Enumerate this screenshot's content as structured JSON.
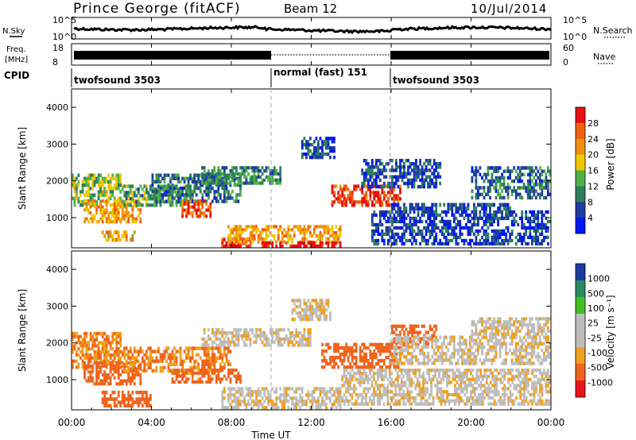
{
  "header": {
    "station": "Prince George (fitACF)",
    "beam": "Beam 12",
    "date": "10/Jul/2014"
  },
  "noise_panel": {
    "left_label": "N.Sky",
    "right_label": "N.Search",
    "left_ticks": [
      "10^5",
      "10^0"
    ],
    "right_ticks": [
      "10^5",
      "10^0"
    ]
  },
  "freq_panel": {
    "left_label_line1": "Freq.",
    "left_label_line2": "[MHz]",
    "right_label": "Nave",
    "left_ticks": [
      "18",
      "8"
    ],
    "right_ticks": [
      "60",
      "0"
    ]
  },
  "cpid_panel": {
    "label": "CPID",
    "segments": [
      {
        "label": "twofsound 3503",
        "start_hour": 0,
        "end_hour": 10
      },
      {
        "label": "normal (fast) 151",
        "start_hour": 10,
        "end_hour": 16
      },
      {
        "label": "twofsound 3503",
        "start_hour": 16,
        "end_hour": 24
      }
    ]
  },
  "time_axis": {
    "label": "Time UT",
    "ticks": [
      "00:00",
      "04:00",
      "08:00",
      "12:00",
      "16:00",
      "20:00",
      "00:00"
    ]
  },
  "colors": {
    "power_scale": [
      "#0018f0",
      "#1f3aa0",
      "#2f7e5e",
      "#4fb148",
      "#f0c808",
      "#f09010",
      "#f06010",
      "#e81010"
    ],
    "velocity_scale": [
      "#e8141c",
      "#f0641c",
      "#f0a01c",
      "#bebebe",
      "#bebebe",
      "#40c020",
      "#2a8a60",
      "#1c3aa0"
    ]
  },
  "chart_data": [
    {
      "type": "heatmap",
      "panel": "power",
      "title": "",
      "xlabel": "Time UT",
      "ylabel": "Slant Range [km]",
      "xlim_hours": [
        0,
        24
      ],
      "ylim": [
        180,
        4500
      ],
      "yticks": [
        "1000",
        "2000",
        "3000",
        "4000"
      ],
      "colorbar_label": "Power [dB]",
      "colorbar_ticks": [
        "28",
        "24",
        "20",
        "16",
        "12",
        "8",
        "4"
      ],
      "colorbar_range": [
        0,
        30
      ],
      "regions": [
        {
          "t0": 0.0,
          "t1": 2.5,
          "r0": 1300,
          "r1": 2200,
          "value": 14
        },
        {
          "t0": 0.6,
          "t1": 3.5,
          "r0": 850,
          "r1": 1500,
          "value": 20
        },
        {
          "t0": 1.5,
          "t1": 3.2,
          "r0": 350,
          "r1": 650,
          "value": 19
        },
        {
          "t0": 2.5,
          "t1": 6.0,
          "r0": 1300,
          "r1": 1900,
          "value": 12
        },
        {
          "t0": 4.0,
          "t1": 8.5,
          "r0": 1400,
          "r1": 2200,
          "value": 8
        },
        {
          "t0": 5.5,
          "t1": 7.0,
          "r0": 1000,
          "r1": 1500,
          "value": 25
        },
        {
          "t0": 6.5,
          "t1": 10.5,
          "r0": 1900,
          "r1": 2400,
          "value": 10
        },
        {
          "t0": 7.5,
          "t1": 9.0,
          "r0": 180,
          "r1": 450,
          "value": 28
        },
        {
          "t0": 7.8,
          "t1": 13.5,
          "r0": 300,
          "r1": 800,
          "value": 20
        },
        {
          "t0": 9.5,
          "t1": 13.5,
          "r0": 180,
          "r1": 360,
          "value": 30
        },
        {
          "t0": 11.5,
          "t1": 13.2,
          "r0": 2600,
          "r1": 3200,
          "value": 6
        },
        {
          "t0": 13.0,
          "t1": 16.5,
          "r0": 1300,
          "r1": 1900,
          "value": 27
        },
        {
          "t0": 14.5,
          "t1": 18.5,
          "r0": 1800,
          "r1": 2600,
          "value": 6
        },
        {
          "t0": 15.0,
          "t1": 24.0,
          "r0": 250,
          "r1": 1200,
          "value": 5
        },
        {
          "t0": 16.0,
          "t1": 22.0,
          "r0": 1200,
          "r1": 1400,
          "value": 6
        },
        {
          "t0": 20.0,
          "t1": 24.0,
          "r0": 1500,
          "r1": 2400,
          "value": 8
        }
      ]
    },
    {
      "type": "heatmap",
      "panel": "velocity",
      "title": "",
      "xlabel": "Time UT",
      "ylabel": "Slant Range [km]",
      "xlim_hours": [
        0,
        24
      ],
      "ylim": [
        180,
        4500
      ],
      "yticks": [
        "1000",
        "2000",
        "3000",
        "4000"
      ],
      "colorbar_label": "Velocity [m s⁻¹]",
      "colorbar_ticks": [
        "1000",
        "500",
        "100",
        "25",
        "-25",
        "-100",
        "-500",
        "-1000"
      ],
      "colorbar_range": [
        -1000,
        1000
      ],
      "regions": [
        {
          "t0": 0.0,
          "t1": 2.5,
          "r0": 1300,
          "r1": 2300,
          "value": -100
        },
        {
          "t0": 0.6,
          "t1": 3.5,
          "r0": 850,
          "r1": 1500,
          "value": -200
        },
        {
          "t0": 1.5,
          "t1": 4.0,
          "r0": 250,
          "r1": 700,
          "value": -300
        },
        {
          "t0": 2.5,
          "t1": 8.0,
          "r0": 1200,
          "r1": 1900,
          "value": -100
        },
        {
          "t0": 5.0,
          "t1": 8.5,
          "r0": 900,
          "r1": 1300,
          "value": -150
        },
        {
          "t0": 6.5,
          "t1": 12.0,
          "r0": 1900,
          "r1": 2400,
          "value": 0
        },
        {
          "t0": 7.5,
          "t1": 13.5,
          "r0": 200,
          "r1": 800,
          "value": 0
        },
        {
          "t0": 11.0,
          "t1": 13.0,
          "r0": 2600,
          "r1": 3200,
          "value": 0
        },
        {
          "t0": 12.5,
          "t1": 16.5,
          "r0": 1300,
          "r1": 2000,
          "value": -250
        },
        {
          "t0": 16.0,
          "t1": 18.3,
          "r0": 1900,
          "r1": 2500,
          "value": -200
        },
        {
          "t0": 13.5,
          "t1": 24.0,
          "r0": 300,
          "r1": 1300,
          "value": 0
        },
        {
          "t0": 16.0,
          "t1": 24.0,
          "r0": 1400,
          "r1": 2200,
          "value": 0
        },
        {
          "t0": 20.0,
          "t1": 24.0,
          "r0": 2200,
          "r1": 2700,
          "value": 0
        }
      ]
    }
  ]
}
